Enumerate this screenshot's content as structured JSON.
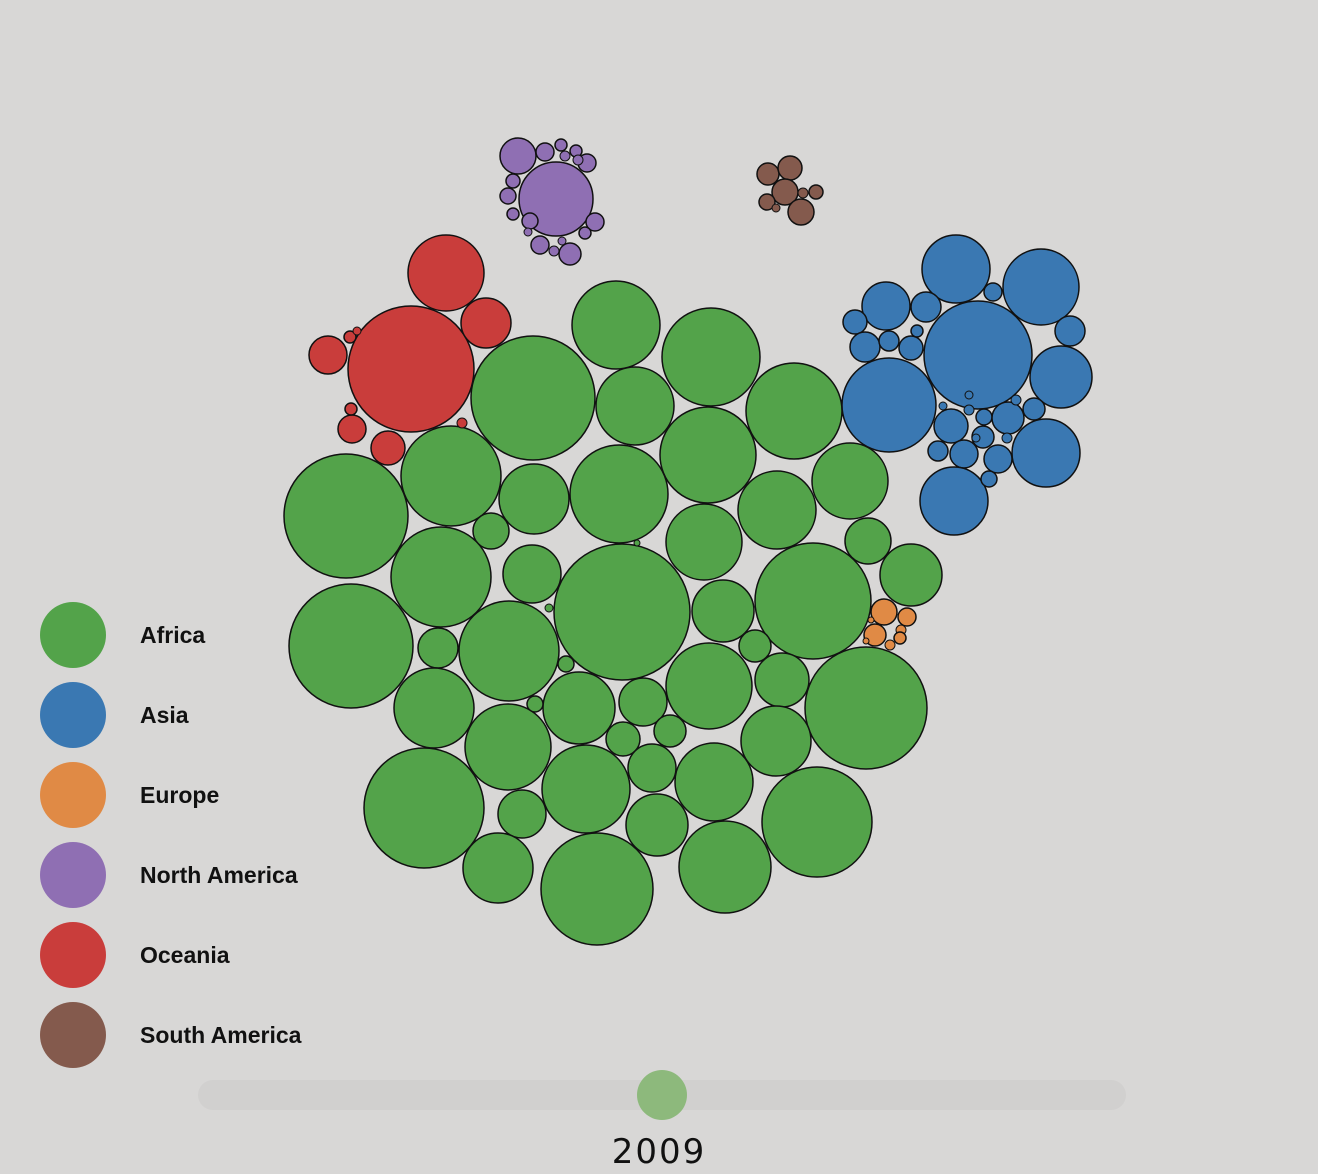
{
  "chart_data": {
    "type": "bubble",
    "year": "2009",
    "legend": [
      {
        "name": "Africa",
        "color": "#53a34a"
      },
      {
        "name": "Asia",
        "color": "#3a78b2"
      },
      {
        "name": "Europe",
        "color": "#e08a45"
      },
      {
        "name": "North America",
        "color": "#8f6fb3"
      },
      {
        "name": "Oceania",
        "color": "#c93d3b"
      },
      {
        "name": "South America",
        "color": "#845a4d"
      }
    ],
    "slider": {
      "position": 0.5
    }
  }
}
